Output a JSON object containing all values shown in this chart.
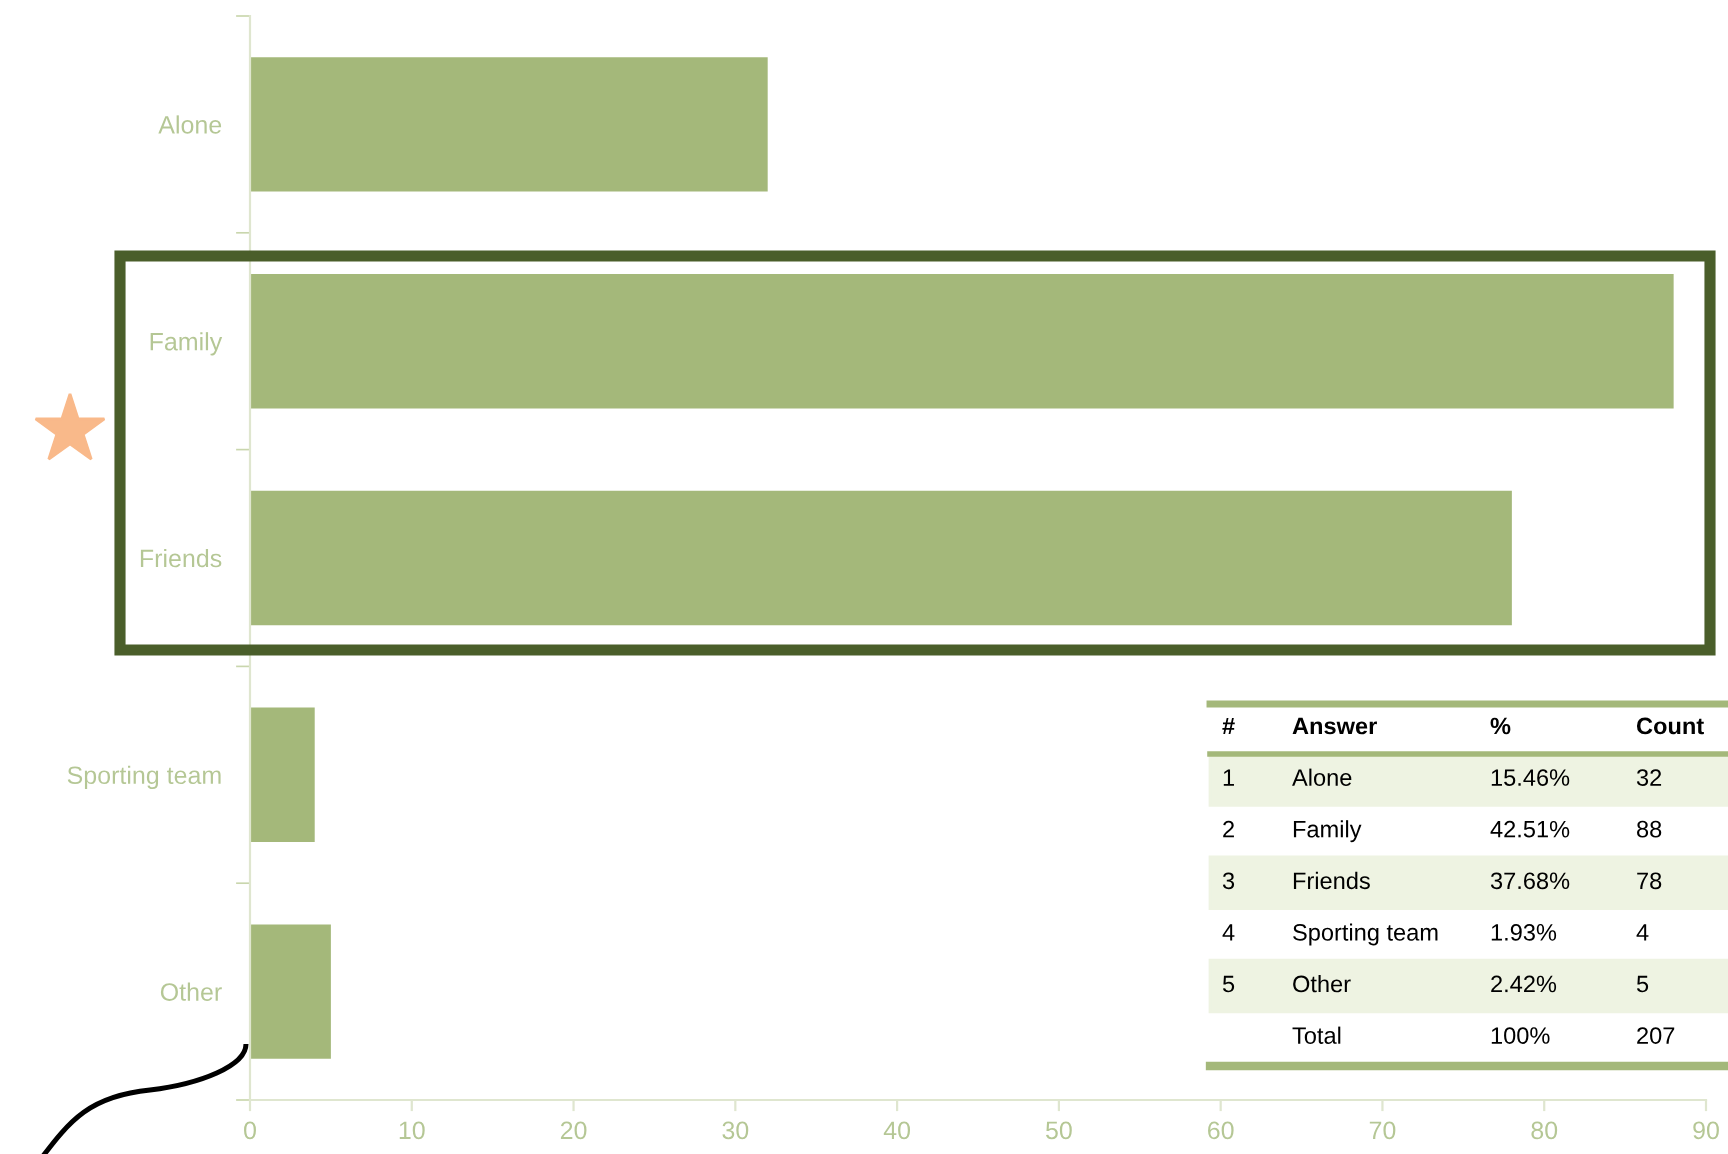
{
  "chart_data": {
    "type": "bar",
    "orientation": "horizontal",
    "categories": [
      "Alone",
      "Family",
      "Friends",
      "Sporting team",
      "Other"
    ],
    "values": [
      32,
      88,
      78,
      4,
      5
    ],
    "color": "#a4b87a",
    "xlim": [
      0,
      90
    ],
    "xticks": [
      0,
      10,
      20,
      30,
      40,
      50,
      60,
      70,
      80,
      90
    ],
    "grid": false,
    "legend": false,
    "annotations": [
      "#",
      "Answer",
      "%",
      "Count",
      "1",
      "Alone",
      "15.46%",
      "32",
      "2",
      "Family",
      "42.51%",
      "88",
      "3",
      "Friends",
      "37.68%",
      "78",
      "4",
      "Sporting team",
      "1.93%",
      "4",
      "5",
      "Other",
      "2.42%",
      "5",
      "Total",
      "100%",
      "207"
    ]
  }
}
